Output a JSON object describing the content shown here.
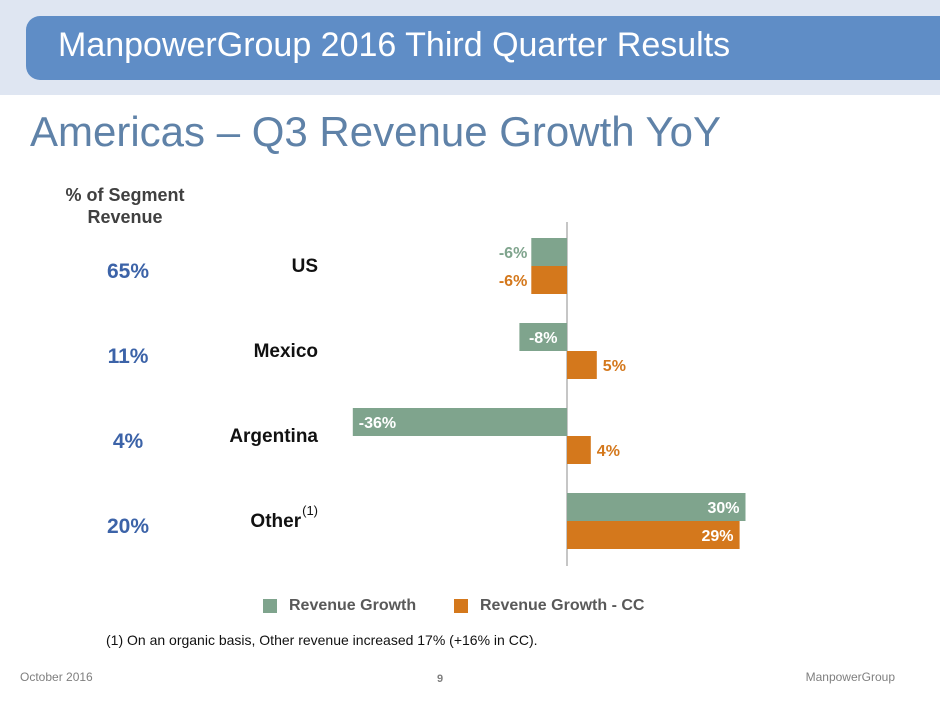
{
  "header": {
    "banner_title": "ManpowerGroup 2016 Third Quarter Results"
  },
  "slide": {
    "title": "Americas – Q3 Revenue Growth YoY"
  },
  "segment_column": {
    "header": "% of Segment Revenue"
  },
  "colors": {
    "revenue_growth": "#7fa48d",
    "revenue_growth_cc": "#d4781c",
    "accent_blue": "#3c63a8",
    "banner": "#5f8dc6"
  },
  "chart_data": {
    "type": "bar",
    "orientation": "horizontal",
    "categories": [
      "US",
      "Mexico",
      "Argentina",
      "Other"
    ],
    "category_superscripts": [
      "",
      "",
      "",
      "(1)"
    ],
    "segment_share_labels": [
      "65%",
      "11%",
      "4%",
      "20%"
    ],
    "series": [
      {
        "name": "Revenue Growth",
        "values": [
          -6,
          -8,
          -36,
          30
        ],
        "labels": [
          "-6%",
          "-8%",
          "-36%",
          "30%"
        ],
        "color": "#7fa48d"
      },
      {
        "name": "Revenue Growth - CC",
        "values": [
          -6,
          5,
          4,
          29
        ],
        "labels": [
          "-6%",
          "5%",
          "4%",
          "29%"
        ],
        "color": "#d4781c"
      }
    ],
    "xlim": [
      -36,
      30
    ],
    "legend_position": "bottom"
  },
  "footnote": "(1) On an organic basis, Other revenue increased 17% (+16% in CC).",
  "footer": {
    "date": "October 2016",
    "page": "9",
    "company": "ManpowerGroup"
  }
}
